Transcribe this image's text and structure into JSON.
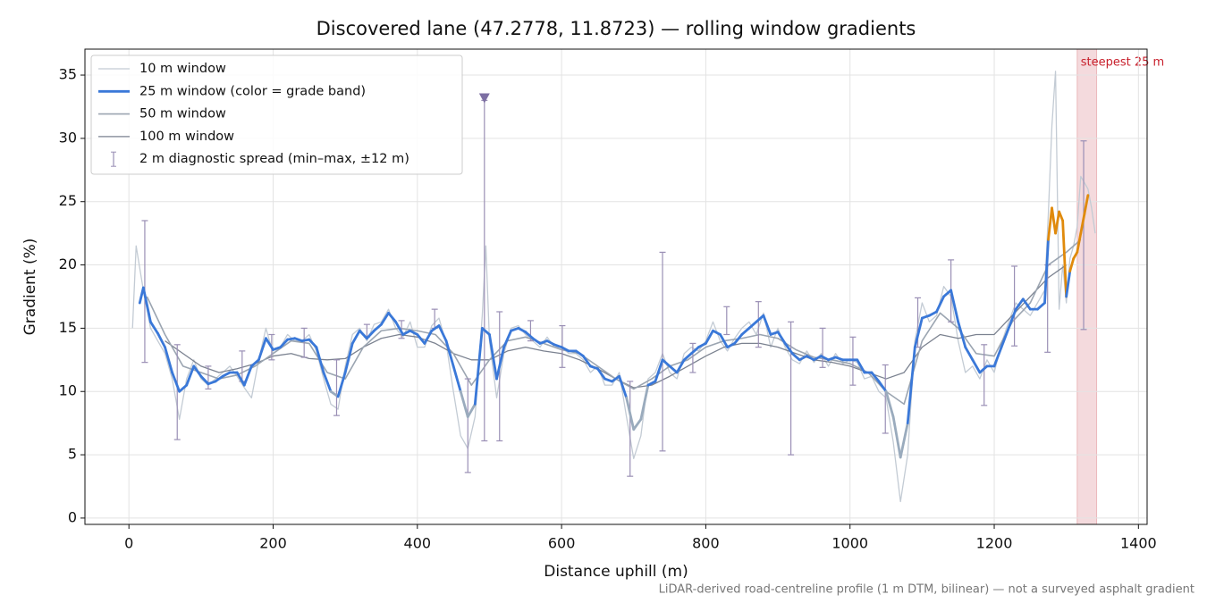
{
  "chart_data": {
    "type": "line",
    "title": "Discovered lane (47.2778, 11.8723) — rolling window gradients",
    "xlabel": "Distance uphill (m)",
    "ylabel": "Gradient (%)",
    "footnote": "LiDAR-derived road-centreline profile (1 m DTM, bilinear) — not a surveyed asphalt gradient",
    "xlim": [
      -61,
      1412
    ],
    "ylim": [
      -0.5,
      37.05
    ],
    "xticks": [
      0,
      200,
      400,
      600,
      800,
      1000,
      1200,
      1400
    ],
    "yticks": [
      0,
      5,
      10,
      15,
      20,
      25,
      30,
      35
    ],
    "grid": true,
    "legend": "upper left",
    "highlight": {
      "label": "steepest 25 m",
      "x": [
        1315,
        1342
      ],
      "color": "#e3a2aa"
    },
    "series": [
      {
        "name": "10 m window",
        "color": "#c3cbd4",
        "x": [
          5,
          10,
          20,
          30,
          40,
          50,
          60,
          70,
          80,
          90,
          100,
          110,
          120,
          130,
          140,
          150,
          160,
          170,
          180,
          190,
          200,
          210,
          220,
          230,
          240,
          250,
          260,
          270,
          280,
          290,
          300,
          310,
          320,
          330,
          340,
          350,
          360,
          370,
          380,
          390,
          400,
          410,
          420,
          430,
          440,
          450,
          460,
          470,
          480,
          490,
          495,
          500,
          510,
          520,
          530,
          540,
          550,
          560,
          570,
          580,
          590,
          600,
          610,
          620,
          630,
          640,
          650,
          660,
          670,
          680,
          690,
          700,
          710,
          720,
          730,
          740,
          750,
          760,
          770,
          780,
          790,
          800,
          810,
          820,
          830,
          840,
          850,
          860,
          870,
          880,
          890,
          900,
          910,
          920,
          930,
          940,
          950,
          960,
          970,
          980,
          990,
          1000,
          1010,
          1020,
          1030,
          1040,
          1050,
          1060,
          1070,
          1080,
          1090,
          1100,
          1110,
          1120,
          1130,
          1140,
          1150,
          1160,
          1170,
          1180,
          1190,
          1200,
          1210,
          1220,
          1230,
          1240,
          1250,
          1260,
          1270,
          1275,
          1280,
          1285,
          1290,
          1295,
          1300,
          1305,
          1310,
          1315,
          1320,
          1325,
          1330,
          1335,
          1340
        ],
        "values": [
          15,
          21.5,
          18,
          15,
          14,
          13,
          11,
          7.8,
          11,
          12.5,
          11,
          10.5,
          11,
          11.5,
          12,
          11.2,
          10.3,
          9.5,
          12.5,
          15,
          13,
          13.5,
          14.5,
          14,
          14,
          14.5,
          13.2,
          11,
          9,
          8.6,
          12,
          14.5,
          15,
          14,
          15.3,
          15.5,
          16.5,
          15,
          14.3,
          15.5,
          13.5,
          13.5,
          15.2,
          15.8,
          13.8,
          10,
          6.5,
          5.5,
          8,
          16,
          21.5,
          14,
          9.5,
          13,
          15,
          15.2,
          14.5,
          14,
          13.5,
          14.3,
          13.5,
          13.5,
          13,
          13,
          12.5,
          11.5,
          12,
          10.5,
          10.5,
          11.5,
          8,
          4.7,
          6.5,
          11,
          11.5,
          13,
          11.5,
          11,
          13,
          13.5,
          13.2,
          14,
          15.5,
          14,
          13.2,
          14.2,
          15,
          15.5,
          14.5,
          16.2,
          13.5,
          15,
          13.5,
          12.5,
          12.2,
          13.2,
          12.3,
          13,
          12,
          13,
          12.2,
          12.5,
          12.3,
          11,
          11.2,
          10,
          9.5,
          6,
          1.3,
          5,
          14,
          17,
          15.5,
          16,
          18.3,
          17.5,
          14,
          11.5,
          12,
          11,
          12.5,
          11.5,
          13.8,
          15.5,
          17,
          16.5,
          16,
          17,
          18,
          24,
          31,
          35.3,
          16.5,
          20,
          17,
          20.5,
          21.5,
          23,
          27,
          26.5,
          26,
          24.5,
          22.5
        ]
      },
      {
        "name": "100 m window",
        "color": "#7b8290",
        "x": [
          50,
          75,
          100,
          125,
          150,
          175,
          200,
          225,
          250,
          275,
          300,
          325,
          350,
          375,
          400,
          425,
          450,
          475,
          500,
          525,
          550,
          575,
          600,
          625,
          650,
          675,
          700,
          725,
          750,
          775,
          800,
          825,
          850,
          875,
          900,
          925,
          950,
          975,
          1000,
          1025,
          1050,
          1075,
          1100,
          1125,
          1150,
          1175,
          1200,
          1225,
          1250,
          1275,
          1300
        ],
        "values": [
          14,
          13,
          12,
          11.5,
          11.8,
          12.2,
          12.8,
          13,
          12.6,
          12.5,
          12.6,
          13.5,
          14.2,
          14.5,
          14.3,
          13.8,
          13,
          12.5,
          12.5,
          13.2,
          13.5,
          13.2,
          13,
          12.5,
          11.8,
          11,
          10.3,
          10.5,
          11.2,
          12,
          12.8,
          13.5,
          13.8,
          13.8,
          13.5,
          13,
          12.5,
          12.3,
          12,
          11.5,
          11,
          11.5,
          13.5,
          14.5,
          14.2,
          14.5,
          14.5,
          16,
          17.5,
          19,
          20
        ]
      },
      {
        "name": "50 m window",
        "color": "#9ba5b1",
        "x": [
          25,
          50,
          75,
          100,
          125,
          150,
          175,
          200,
          225,
          250,
          275,
          300,
          325,
          350,
          375,
          400,
          425,
          450,
          475,
          500,
          525,
          550,
          575,
          600,
          625,
          650,
          675,
          700,
          725,
          750,
          775,
          800,
          825,
          850,
          875,
          900,
          925,
          950,
          975,
          1000,
          1025,
          1050,
          1075,
          1100,
          1125,
          1150,
          1175,
          1200,
          1225,
          1250,
          1275,
          1300,
          1320
        ],
        "values": [
          17.5,
          14.5,
          12,
          11.5,
          11,
          11.3,
          12,
          13,
          14,
          13.8,
          11.5,
          11,
          13.5,
          14.8,
          15,
          14.8,
          14.5,
          13,
          10.5,
          12.5,
          14,
          14.3,
          13.8,
          13.3,
          13,
          12,
          11,
          10.2,
          11,
          12,
          12.5,
          13.5,
          14,
          14.2,
          14.5,
          14.2,
          13.3,
          12.7,
          12.5,
          12.2,
          11.5,
          10,
          9,
          14,
          16.2,
          15,
          13,
          12.8,
          15.5,
          17,
          20,
          21,
          22
        ]
      },
      {
        "name": "25 m window (color = grade band)",
        "color": "#3a78d8",
        "banded": true,
        "x": [
          15,
          20,
          30,
          40,
          50,
          60,
          70,
          80,
          90,
          100,
          110,
          120,
          130,
          140,
          150,
          160,
          170,
          180,
          190,
          200,
          210,
          220,
          230,
          240,
          250,
          260,
          270,
          280,
          290,
          300,
          310,
          320,
          330,
          340,
          350,
          360,
          370,
          380,
          390,
          400,
          410,
          420,
          430,
          440,
          450,
          460,
          470,
          480,
          490,
          500,
          510,
          520,
          530,
          540,
          550,
          560,
          570,
          580,
          590,
          600,
          610,
          620,
          630,
          640,
          650,
          660,
          670,
          680,
          690,
          700,
          710,
          720,
          730,
          740,
          750,
          760,
          770,
          780,
          790,
          800,
          810,
          820,
          830,
          840,
          850,
          860,
          870,
          880,
          890,
          900,
          910,
          920,
          930,
          940,
          950,
          960,
          970,
          980,
          990,
          1000,
          1010,
          1020,
          1030,
          1040,
          1050,
          1060,
          1070,
          1080,
          1090,
          1100,
          1110,
          1120,
          1130,
          1140,
          1150,
          1160,
          1170,
          1180,
          1190,
          1200,
          1210,
          1220,
          1230,
          1240,
          1250,
          1260,
          1270,
          1275,
          1280,
          1285,
          1290,
          1295,
          1300,
          1305,
          1310,
          1315,
          1320,
          1325,
          1330
        ],
        "values": [
          17,
          18.2,
          15.5,
          14.6,
          13.5,
          11.5,
          10,
          10.5,
          12,
          11.2,
          10.6,
          10.8,
          11.2,
          11.5,
          11.5,
          10.5,
          12,
          12.5,
          14.2,
          13.3,
          13.5,
          14.1,
          14.2,
          14,
          14.1,
          13.5,
          11.5,
          10,
          9.6,
          11.5,
          13.8,
          14.8,
          14.2,
          14.8,
          15.3,
          16.2,
          15.5,
          14.5,
          14.8,
          14.5,
          13.8,
          14.8,
          15.2,
          14,
          12,
          10,
          8,
          9,
          15,
          14.5,
          11,
          13.5,
          14.8,
          15,
          14.7,
          14.2,
          13.8,
          14,
          13.7,
          13.5,
          13.2,
          13.2,
          12.8,
          12,
          11.8,
          11,
          10.8,
          11.2,
          9.5,
          7,
          7.8,
          10.5,
          10.8,
          12.5,
          12,
          11.5,
          12.5,
          13,
          13.5,
          13.8,
          14.8,
          14.5,
          13.5,
          13.8,
          14.5,
          15,
          15.5,
          16,
          14.5,
          14.7,
          13.8,
          13,
          12.5,
          12.8,
          12.5,
          12.8,
          12.5,
          12.7,
          12.5,
          12.5,
          12.5,
          11.5,
          11.5,
          10.8,
          10,
          8,
          4.8,
          7.5,
          13.5,
          15.8,
          16,
          16.3,
          17.5,
          18,
          15.5,
          13.5,
          12.5,
          11.5,
          12,
          12,
          13.5,
          15,
          16.5,
          17.3,
          16.5,
          16.5,
          17,
          22,
          24.5,
          22.5,
          24.2,
          23.5,
          17.5,
          19.5,
          20.5,
          21,
          22.5,
          24,
          25.5
        ],
        "thresholds": [
          10,
          20,
          25
        ],
        "band_colors": [
          "#9aabbd",
          "#3a78d8",
          "#e08a0c",
          "#c8202c"
        ]
      }
    ],
    "errorbars": {
      "name": "2 m diagnostic spread (min–max, ±12 m)",
      "color": "#9a8fb5",
      "x": [
        22,
        67,
        110,
        157,
        198,
        243,
        288,
        330,
        378,
        424,
        470,
        493,
        514,
        557,
        601,
        695,
        740,
        782,
        829,
        873,
        918,
        962,
        1004,
        1049,
        1094,
        1140,
        1186,
        1228,
        1274,
        1324
      ],
      "low": [
        12.3,
        6.2,
        10.2,
        10.8,
        12.5,
        12.7,
        8.1,
        14.3,
        14.2,
        15,
        3.6,
        6.1,
        6.1,
        14,
        11.9,
        3.3,
        5.3,
        11.5,
        14.5,
        13.5,
        5,
        11.9,
        10.5,
        6.7,
        13.5,
        15.5,
        8.9,
        13.6,
        13.1,
        14.9
      ],
      "high": [
        23.5,
        13.7,
        12,
        13.2,
        14.5,
        15,
        12.5,
        15.3,
        15.6,
        16.5,
        11,
        33,
        16.3,
        15.6,
        15.2,
        10.8,
        21,
        13.8,
        16.7,
        17.1,
        15.5,
        15,
        14.3,
        12.1,
        17.4,
        20.4,
        13.7,
        19.9,
        20,
        29.8
      ]
    },
    "marker": {
      "x": 493,
      "y": 33.2,
      "color": "#7d6fa3"
    }
  }
}
